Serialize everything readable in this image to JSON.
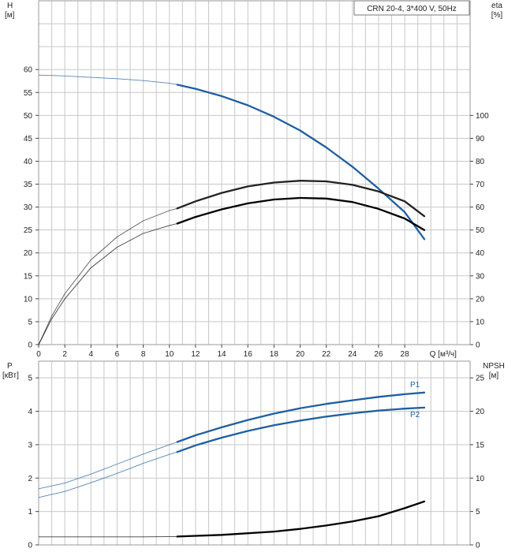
{
  "chart_data": [
    {
      "type": "line",
      "panel": "upper",
      "legend_text": "CRN 20-4, 3*400 V, 50Hz",
      "y_left_label_top": "H",
      "y_left_label_unit": "[м]",
      "y_right_label_top": "eta",
      "y_right_label_unit": "[%]",
      "x_axis_label": "Q [м³/ч]",
      "x_ticks": [
        "0",
        "2",
        "4",
        "6",
        "8",
        "10",
        "12",
        "14",
        "16",
        "18",
        "20",
        "22",
        "24",
        "26",
        "28"
      ],
      "y_left_ticks": [
        "0",
        "5",
        "10",
        "15",
        "20",
        "25",
        "30",
        "35",
        "40",
        "45",
        "50",
        "55",
        "60"
      ],
      "y_right_ticks": [
        "0",
        "10",
        "20",
        "30",
        "40",
        "50",
        "60",
        "70",
        "80",
        "90",
        "100"
      ],
      "xlim": [
        0,
        33
      ],
      "ylim_left": [
        0,
        75
      ],
      "ylim_right": [
        0,
        150
      ],
      "grid": true,
      "series": [
        {
          "name": "",
          "axis": "left",
          "color": "#1f5fa0",
          "thin_x": [
            0,
            2,
            4,
            6,
            8,
            10,
            10.6
          ],
          "thin_y": [
            58.8,
            58.6,
            58.3,
            58.0,
            57.6,
            57.0,
            56.7
          ],
          "thick_x": [
            10.6,
            12,
            14,
            16,
            18,
            20,
            22,
            24,
            26,
            28,
            29.5
          ],
          "thick_y": [
            56.7,
            55.8,
            54.2,
            52.2,
            49.7,
            46.7,
            43.0,
            38.8,
            34.0,
            28.9,
            23.0
          ]
        },
        {
          "name": "",
          "axis": "right",
          "color": "#222222",
          "thin_x": [
            0,
            1,
            2,
            4,
            6,
            8,
            10,
            10.6
          ],
          "thin_y": [
            0,
            12.5,
            22.2,
            37,
            47,
            54,
            58.5,
            59.4
          ],
          "thick_x": [
            10.6,
            12,
            14,
            16,
            18,
            20,
            22,
            24,
            26,
            28,
            29.5
          ],
          "thick_y": [
            59.4,
            62.5,
            66.2,
            69.0,
            70.7,
            71.5,
            71.2,
            69.7,
            66.8,
            62.5,
            56.0
          ]
        },
        {
          "name": "",
          "axis": "right",
          "color": "#000000",
          "thin_x": [
            0,
            1,
            2,
            4,
            6,
            8,
            10,
            10.6
          ],
          "thin_y": [
            0,
            11.3,
            20,
            33.5,
            42.5,
            48.5,
            52,
            52.8
          ],
          "thick_x": [
            10.6,
            12,
            14,
            16,
            18,
            20,
            22,
            24,
            26,
            28,
            29.5
          ],
          "thick_y": [
            52.8,
            55.7,
            59.0,
            61.6,
            63.3,
            64.0,
            63.7,
            62.2,
            59.2,
            55.0,
            50.0
          ]
        }
      ]
    },
    {
      "type": "line",
      "panel": "lower",
      "y_left_label_top": "P",
      "y_left_label_unit": "[кВт]",
      "y_right_label_top": "NPSH",
      "y_right_label_unit": "[м]",
      "y_left_ticks": [
        "0",
        "1",
        "2",
        "3",
        "4",
        "5"
      ],
      "y_right_ticks": [
        "0",
        "5",
        "10",
        "15",
        "20",
        "25"
      ],
      "xlim": [
        0,
        33
      ],
      "ylim_left": [
        0,
        5.5
      ],
      "ylim_right": [
        0,
        27.5
      ],
      "grid": true,
      "series": [
        {
          "name": "P1",
          "axis": "left",
          "color": "#1f5fa0",
          "thin_x": [
            0,
            2,
            4,
            6,
            8,
            10,
            10.6
          ],
          "thin_y": [
            1.68,
            1.85,
            2.12,
            2.42,
            2.72,
            3.0,
            3.08
          ],
          "thick_x": [
            10.6,
            12,
            14,
            16,
            18,
            20,
            22,
            24,
            26,
            28,
            29.5
          ],
          "thick_y": [
            3.08,
            3.28,
            3.52,
            3.74,
            3.93,
            4.09,
            4.22,
            4.33,
            4.43,
            4.51,
            4.56
          ]
        },
        {
          "name": "P2",
          "axis": "left",
          "color": "#1f5fa0",
          "thin_x": [
            0,
            2,
            4,
            6,
            8,
            10,
            10.6
          ],
          "thin_y": [
            1.42,
            1.6,
            1.86,
            2.14,
            2.44,
            2.71,
            2.78
          ],
          "thick_x": [
            10.6,
            12,
            14,
            16,
            18,
            20,
            22,
            24,
            26,
            28,
            29.5
          ],
          "thick_y": [
            2.78,
            2.98,
            3.21,
            3.41,
            3.58,
            3.72,
            3.84,
            3.94,
            4.02,
            4.08,
            4.11
          ]
        },
        {
          "name": "",
          "axis": "right",
          "color": "#000000",
          "thin_x": [
            0,
            4,
            8,
            10.6
          ],
          "thin_y": [
            1.2,
            1.2,
            1.2,
            1.25
          ],
          "thick_x": [
            10.6,
            14,
            18,
            20,
            22,
            24,
            26,
            27,
            28,
            29.5
          ],
          "thick_y": [
            1.25,
            1.5,
            2.0,
            2.4,
            2.9,
            3.5,
            4.3,
            4.9,
            5.5,
            6.5
          ]
        }
      ]
    }
  ]
}
